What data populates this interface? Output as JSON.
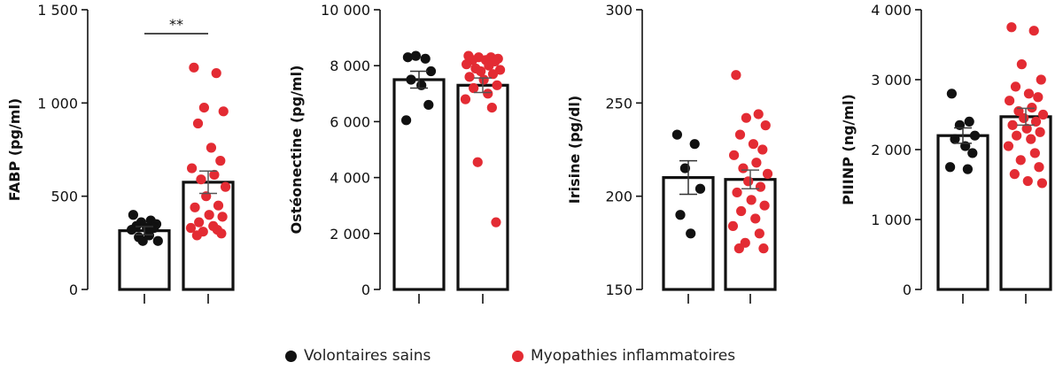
{
  "legend": {
    "items": [
      {
        "label": "Volontaires sains",
        "color": "#111111"
      },
      {
        "label": "Myopathies inflammatoires",
        "color": "#e32b33"
      }
    ]
  },
  "chart_data": [
    {
      "type": "bar",
      "ylabel": "FABP (pg/ml)",
      "ylim": [
        0,
        1500
      ],
      "yticks": [
        0,
        500,
        1000,
        1500
      ],
      "ytick_labels": [
        "0",
        "500",
        "1 000",
        "1 500"
      ],
      "significance": "**",
      "groups": [
        {
          "name": "Volontaires sains",
          "mean": 315,
          "sem": 22,
          "points": [
            400,
            370,
            360,
            350,
            340,
            330,
            330,
            320,
            290,
            280,
            260,
            260
          ]
        },
        {
          "name": "Myopathies inflammatoires",
          "mean": 575,
          "sem": 60,
          "points": [
            1190,
            1160,
            975,
            955,
            890,
            760,
            690,
            650,
            615,
            590,
            550,
            500,
            450,
            440,
            400,
            390,
            360,
            340,
            330,
            320,
            310,
            300,
            290
          ]
        }
      ]
    },
    {
      "type": "bar",
      "ylabel": "Ostéonectine (pg/ml)",
      "ylim": [
        0,
        10000
      ],
      "yticks": [
        0,
        2000,
        4000,
        6000,
        8000,
        10000
      ],
      "ytick_labels": [
        "0",
        "2 000",
        "4 000",
        "6 000",
        "8 000",
        "10 000"
      ],
      "groups": [
        {
          "name": "Volontaires sains",
          "mean": 7500,
          "sem": 300,
          "points": [
            8300,
            8250,
            8350,
            7800,
            7500,
            7300,
            6600,
            6050
          ]
        },
        {
          "name": "Myopathies inflammatoires",
          "mean": 7300,
          "sem": 260,
          "points": [
            8350,
            8300,
            8300,
            8250,
            8200,
            8200,
            8150,
            8050,
            8000,
            7900,
            7850,
            7800,
            7700,
            7600,
            7500,
            7300,
            7200,
            7000,
            6800,
            6500,
            4550,
            2400
          ]
        }
      ]
    },
    {
      "type": "bar",
      "ylabel": "Irisine (pg/dl)",
      "ylim": [
        150,
        300
      ],
      "yticks": [
        150,
        200,
        250,
        300
      ],
      "ytick_labels": [
        "150",
        "200",
        "250",
        "300"
      ],
      "groups": [
        {
          "name": "Volontaires sains",
          "mean": 210,
          "sem": 9,
          "points": [
            233,
            228,
            215,
            204,
            190,
            180
          ]
        },
        {
          "name": "Myopathies inflammatoires",
          "mean": 209,
          "sem": 5,
          "points": [
            265,
            244,
            242,
            238,
            233,
            228,
            225,
            222,
            218,
            215,
            212,
            208,
            205,
            202,
            198,
            195,
            192,
            188,
            184,
            180,
            175,
            172,
            172
          ]
        }
      ]
    },
    {
      "type": "bar",
      "ylabel": "PIIINP (ng/ml)",
      "ylim": [
        0,
        4000
      ],
      "yticks": [
        0,
        1000,
        2000,
        3000,
        4000
      ],
      "ytick_labels": [
        "0",
        "1 000",
        "2 000",
        "3 000",
        "4 000"
      ],
      "groups": [
        {
          "name": "Volontaires sains",
          "mean": 2200,
          "sem": 110,
          "points": [
            2800,
            2400,
            2350,
            2200,
            2150,
            2050,
            1950,
            1750,
            1720
          ]
        },
        {
          "name": "Myopathies inflammatoires",
          "mean": 2470,
          "sem": 120,
          "points": [
            3750,
            3700,
            3220,
            3000,
            2900,
            2800,
            2750,
            2700,
            2600,
            2550,
            2500,
            2450,
            2400,
            2350,
            2300,
            2250,
            2200,
            2150,
            2050,
            1950,
            1850,
            1750,
            1650,
            1550,
            1520
          ]
        }
      ]
    }
  ]
}
